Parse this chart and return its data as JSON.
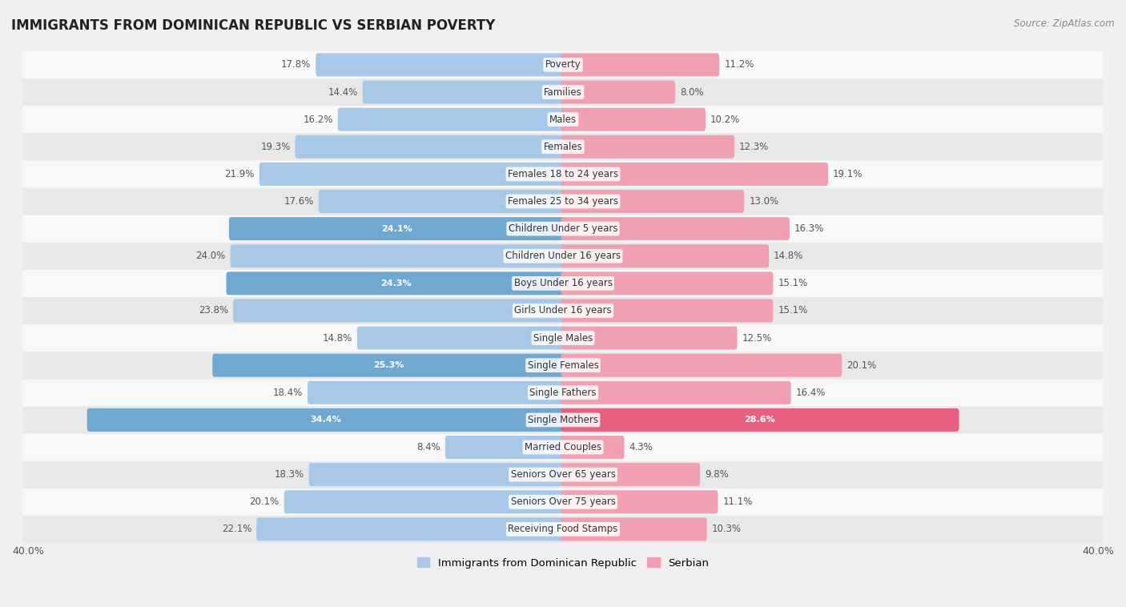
{
  "title": "IMMIGRANTS FROM DOMINICAN REPUBLIC VS SERBIAN POVERTY",
  "source": "Source: ZipAtlas.com",
  "categories": [
    "Poverty",
    "Families",
    "Males",
    "Females",
    "Females 18 to 24 years",
    "Females 25 to 34 years",
    "Children Under 5 years",
    "Children Under 16 years",
    "Boys Under 16 years",
    "Girls Under 16 years",
    "Single Males",
    "Single Females",
    "Single Fathers",
    "Single Mothers",
    "Married Couples",
    "Seniors Over 65 years",
    "Seniors Over 75 years",
    "Receiving Food Stamps"
  ],
  "dominican": [
    17.8,
    14.4,
    16.2,
    19.3,
    21.9,
    17.6,
    24.1,
    24.0,
    24.3,
    23.8,
    14.8,
    25.3,
    18.4,
    34.4,
    8.4,
    18.3,
    20.1,
    22.1
  ],
  "serbian": [
    11.2,
    8.0,
    10.2,
    12.3,
    19.1,
    13.0,
    16.3,
    14.8,
    15.1,
    15.1,
    12.5,
    20.1,
    16.4,
    28.6,
    4.3,
    9.8,
    11.1,
    10.3
  ],
  "dominican_color_normal": "#a8c8e8",
  "dominican_color_highlight": "#6fa8d0",
  "serbian_color_normal": "#f0a0b0",
  "serbian_color_highlight": "#e86080",
  "highlight_dom_rows": [
    6,
    8,
    11,
    13
  ],
  "highlight_ser_rows": [
    13
  ],
  "background_color": "#f0f0f0",
  "row_bg_odd": "#e8e8e8",
  "row_bg_even": "#f8f8f8",
  "max_val": 40.0,
  "legend_dominican": "Immigrants from Dominican Republic",
  "legend_serbian": "Serbian"
}
